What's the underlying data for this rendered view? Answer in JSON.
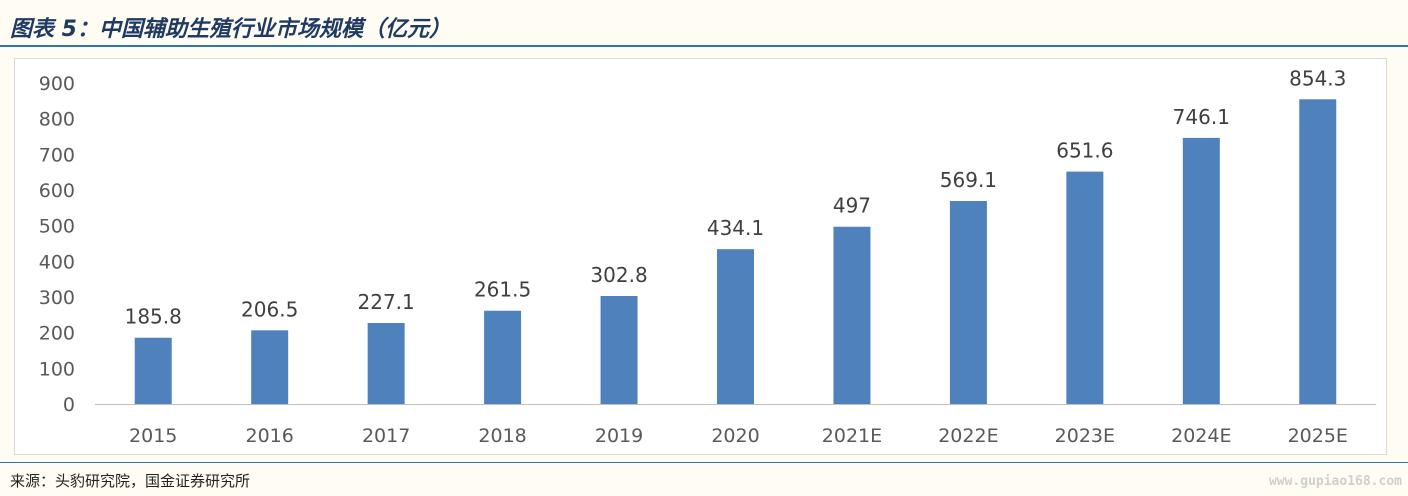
{
  "header": {
    "title": "图表 5：中国辅助生殖行业市场规模（亿元）"
  },
  "footer": {
    "source": "来源：头豹研究院，国金证券研究所",
    "watermark": "www.gupiao168.com"
  },
  "colors": {
    "bar": "#4f81bd",
    "accent_rule": "#2e75b6",
    "title": "#1f3b63",
    "page_bg": "#fffcf3"
  },
  "chart_data": {
    "type": "bar",
    "categories": [
      "2015",
      "2016",
      "2017",
      "2018",
      "2019",
      "2020",
      "2021E",
      "2022E",
      "2023E",
      "2024E",
      "2025E"
    ],
    "values": [
      185.8,
      206.5,
      227.1,
      261.5,
      302.8,
      434.1,
      497,
      569.1,
      651.6,
      746.1,
      854.3
    ],
    "value_labels": [
      "185.8",
      "206.5",
      "227.1",
      "261.5",
      "302.8",
      "434.1",
      "497",
      "569.1",
      "651.6",
      "746.1",
      "854.3"
    ],
    "yticks": [
      0,
      100,
      200,
      300,
      400,
      500,
      600,
      700,
      800,
      900
    ],
    "ylim": [
      0,
      900
    ],
    "grid": false,
    "legend": "none"
  }
}
